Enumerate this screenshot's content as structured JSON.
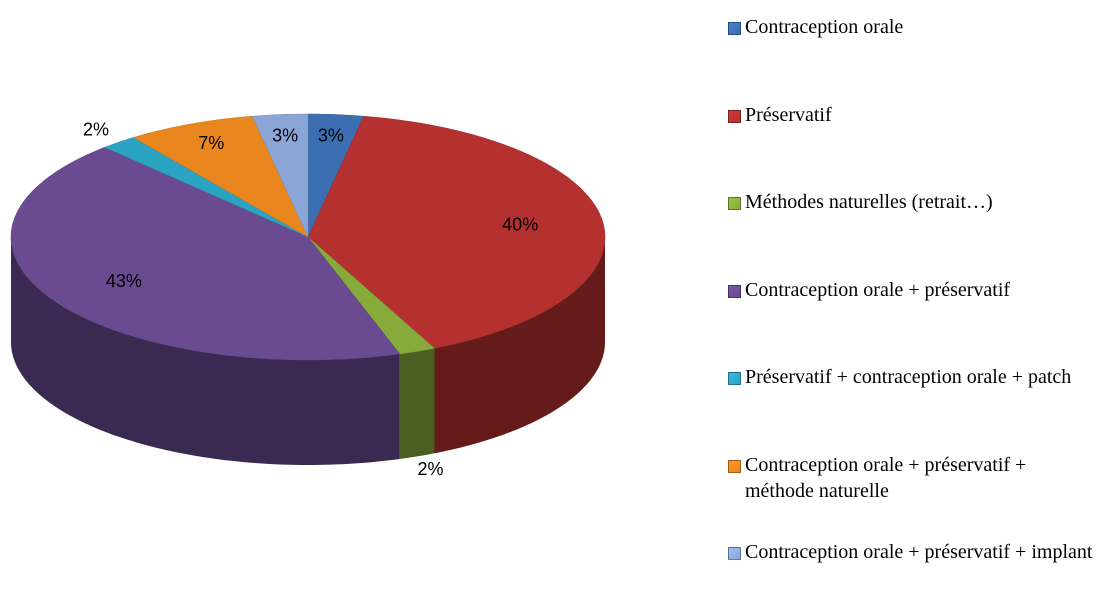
{
  "chart_data": {
    "type": "pie",
    "categories": [
      "Contraception orale",
      "Préservatif",
      "Méthodes naturelles (retrait…)",
      "Contraception orale + préservatif",
      "Préservatif + contraception orale + patch",
      "Contraception orale + préservatif + méthode naturelle",
      "Contraception orale + préservatif + implant"
    ],
    "values": [
      3,
      40,
      2,
      43,
      2,
      7,
      3
    ],
    "value_labels": [
      "3%",
      "40%",
      "2%",
      "43%",
      "2%",
      "7%",
      "3%"
    ],
    "colors": [
      "#3b6fb2",
      "#b53130",
      "#86ab3a",
      "#6a4b91",
      "#2ba3c2",
      "#e9861e",
      "#8ba6d6"
    ],
    "legend": "right"
  }
}
